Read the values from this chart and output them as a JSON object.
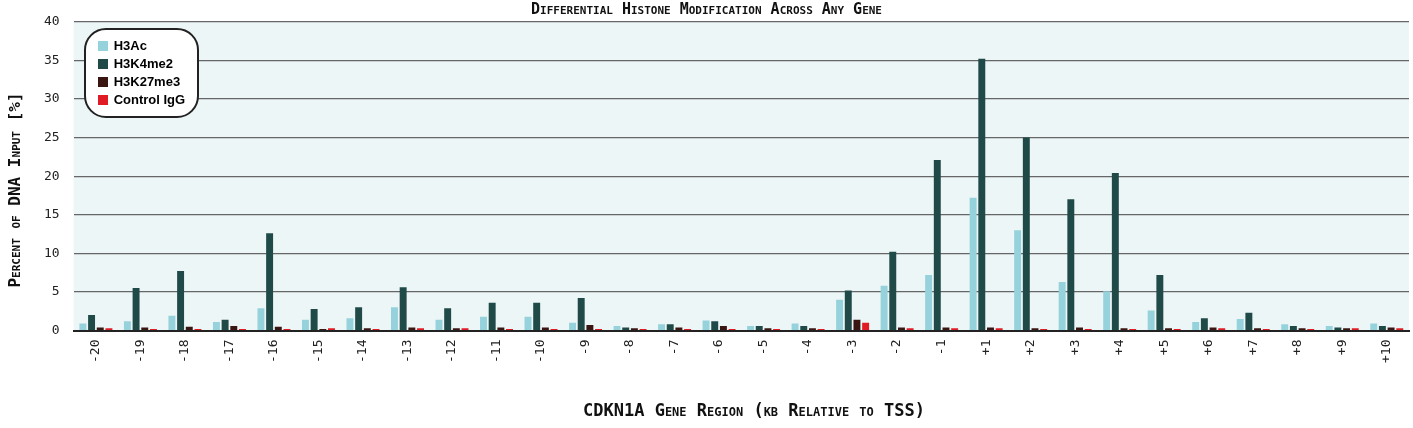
{
  "chart_data": {
    "type": "bar",
    "title": "Differential Histone Modification Across Any Gene",
    "xlabel": "CDKN1A Gene Region (kb Relative to TSS)",
    "ylabel": "Percent of DNA Input [%]",
    "categories": [
      "-20",
      "-19",
      "-18",
      "-17",
      "-16",
      "-15",
      "-14",
      "-13",
      "-12",
      "-11",
      "-10",
      "-9",
      "-8",
      "-7",
      "-6",
      "-5",
      "-4",
      "-3",
      "-2",
      "-1",
      "+1",
      "+2",
      "+3",
      "+4",
      "+5",
      "+6",
      "+7",
      "+8",
      "+9",
      "+10"
    ],
    "series": [
      {
        "name": "H3Ac",
        "color": "#96d2dc",
        "values": [
          0.9,
          1.2,
          1.9,
          1.1,
          2.9,
          1.4,
          1.6,
          3.0,
          1.4,
          1.8,
          1.8,
          1.0,
          0.6,
          0.8,
          1.3,
          0.6,
          0.9,
          4.0,
          5.8,
          7.2,
          17.2,
          13.0,
          6.3,
          5.1,
          2.6,
          1.1,
          1.5,
          0.8,
          0.6,
          0.9
        ]
      },
      {
        "name": "H3K4me2",
        "color": "#1f4a48",
        "values": [
          2.0,
          5.5,
          7.7,
          1.4,
          12.6,
          2.8,
          3.0,
          5.6,
          2.9,
          3.6,
          3.6,
          4.2,
          0.4,
          0.8,
          1.2,
          0.6,
          0.6,
          5.2,
          10.2,
          22.1,
          35.2,
          25.0,
          17.0,
          20.4,
          7.2,
          1.6,
          2.3,
          0.6,
          0.4,
          0.6
        ]
      },
      {
        "name": "H3K27me3",
        "color": "#3a1612",
        "values": [
          0.4,
          0.4,
          0.5,
          0.6,
          0.5,
          0.2,
          0.3,
          0.4,
          0.3,
          0.4,
          0.4,
          0.7,
          0.3,
          0.4,
          0.6,
          0.3,
          0.3,
          1.4,
          0.4,
          0.4,
          0.4,
          0.3,
          0.4,
          0.3,
          0.3,
          0.4,
          0.3,
          0.3,
          0.3,
          0.4
        ]
      },
      {
        "name": "Control IgG",
        "color": "#e01b24",
        "values": [
          0.3,
          0.2,
          0.2,
          0.2,
          0.2,
          0.3,
          0.2,
          0.3,
          0.3,
          0.2,
          0.2,
          0.2,
          0.2,
          0.2,
          0.2,
          0.2,
          0.2,
          1.0,
          0.3,
          0.3,
          0.3,
          0.2,
          0.2,
          0.2,
          0.2,
          0.3,
          0.2,
          0.2,
          0.3,
          0.3
        ]
      }
    ],
    "ylim": [
      0,
      40
    ],
    "yticks": [
      0,
      5,
      10,
      15,
      20,
      25,
      30,
      35,
      40
    ],
    "grid": "y",
    "legend": "top left"
  }
}
